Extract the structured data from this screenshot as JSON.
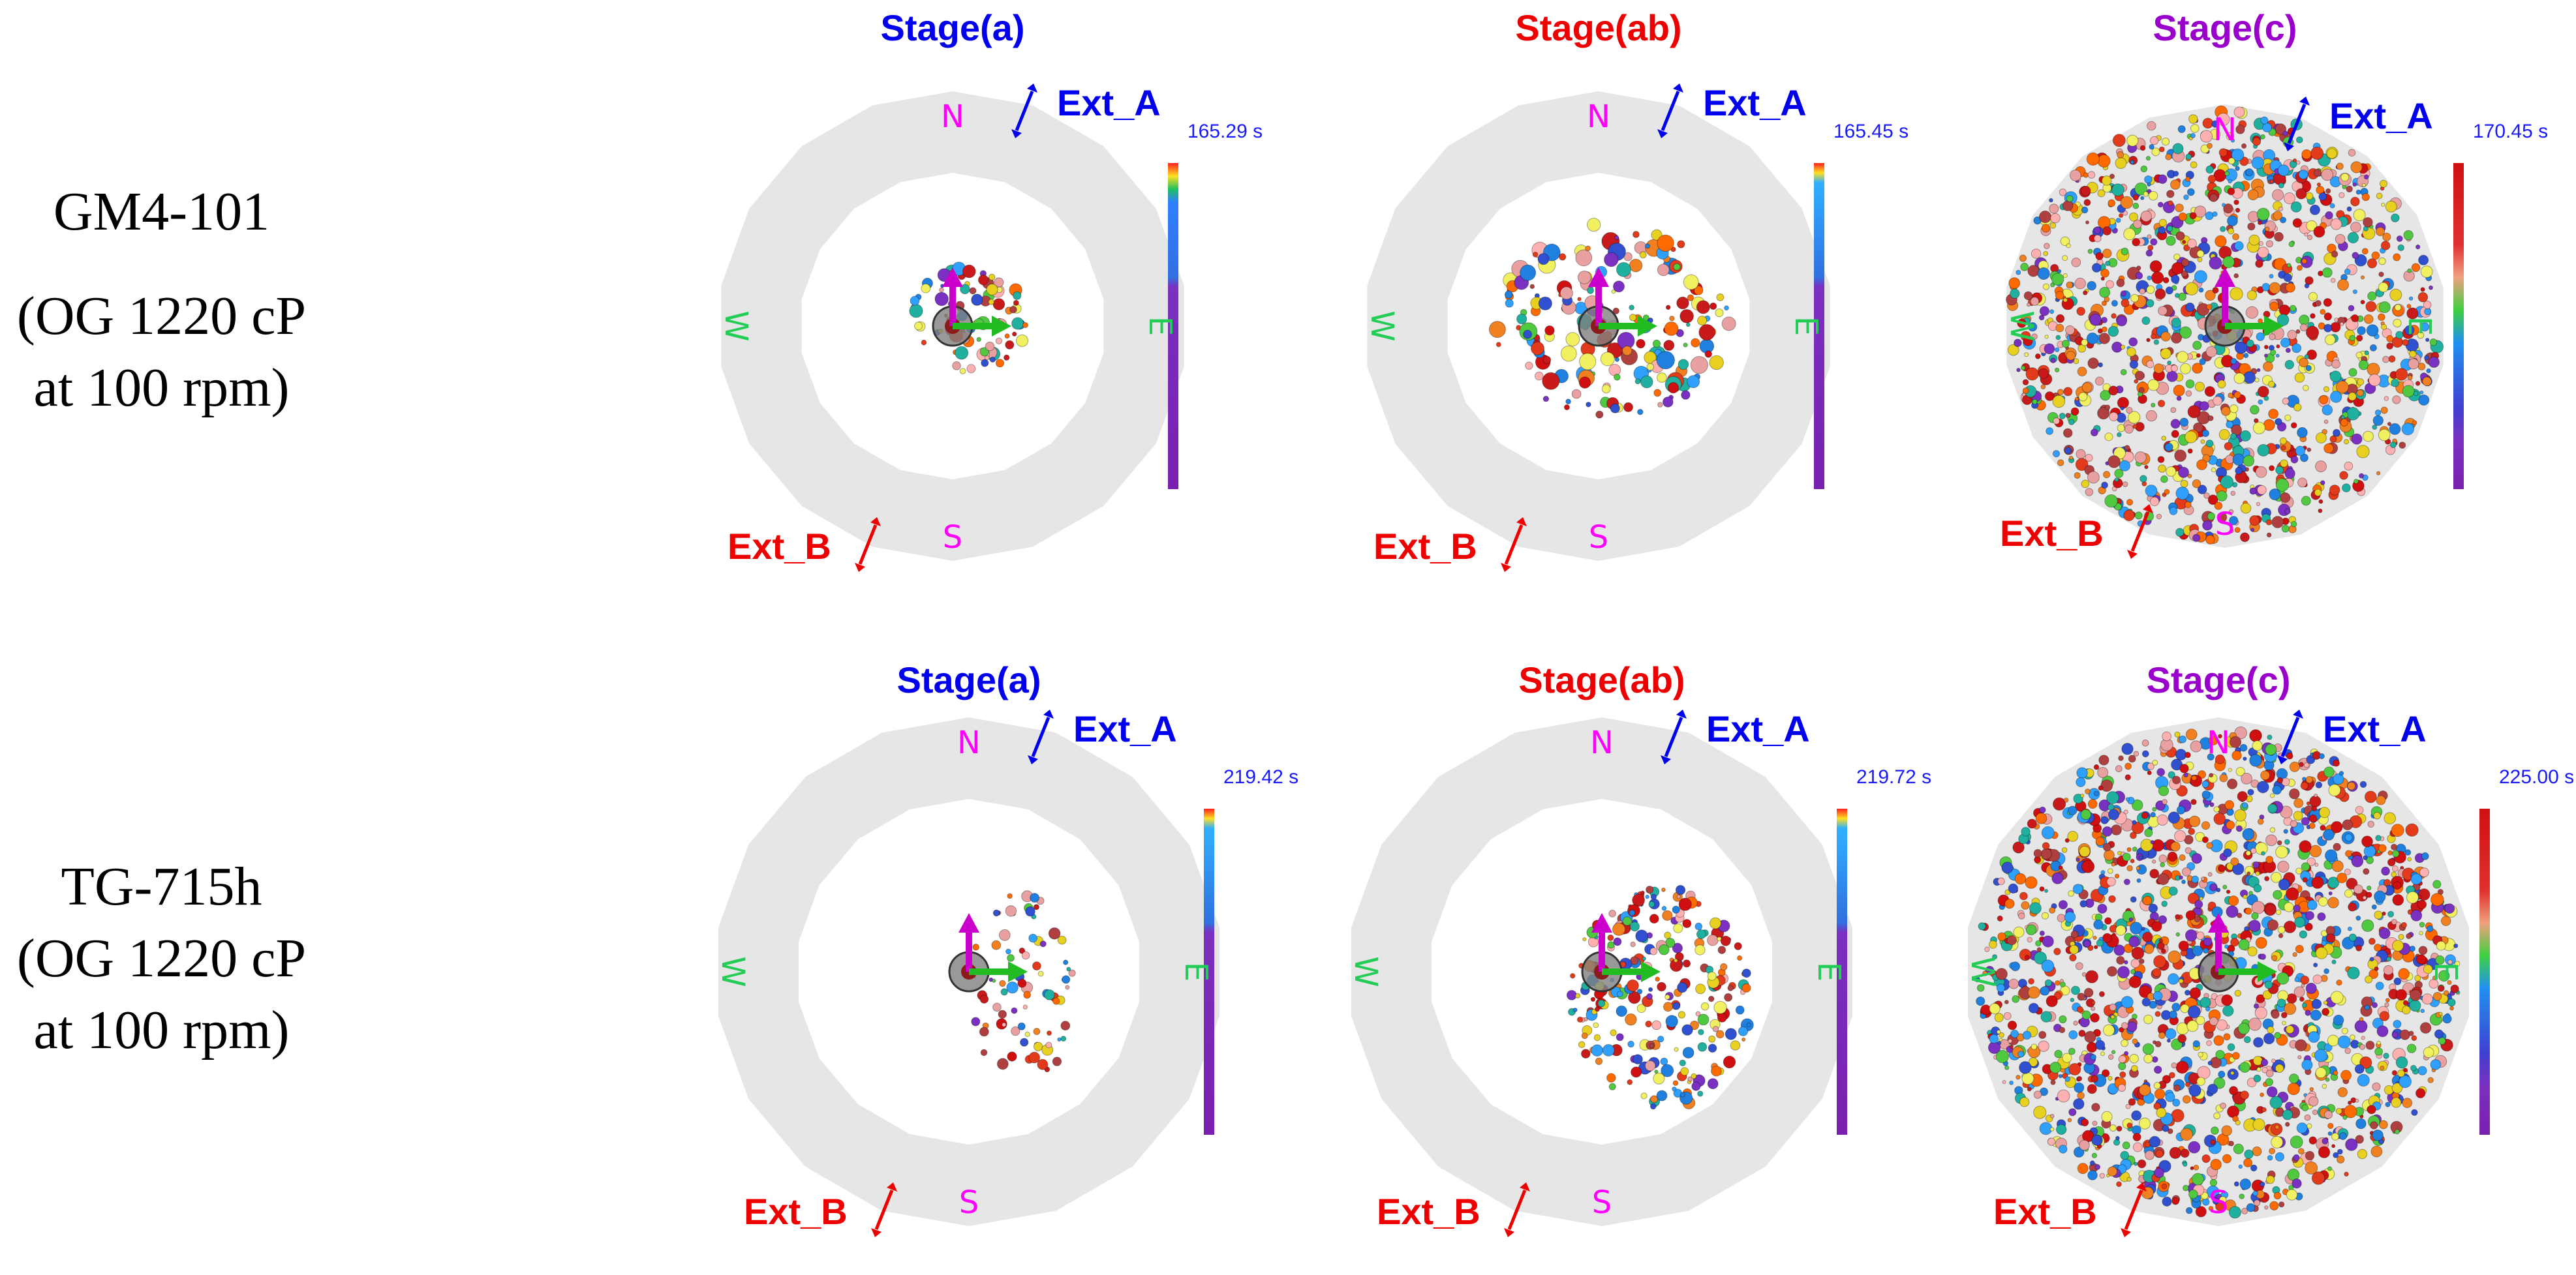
{
  "colors": {
    "stage_a": "#0000ee",
    "stage_ab": "#ee0000",
    "stage_c": "#9900cc",
    "ext_a": "#0000ee",
    "ext_b": "#ee0000",
    "north_south": "#ff00ff",
    "east_west": "#22cc55",
    "ring": "#e6e6e6",
    "time": "#1a1aff"
  },
  "rows": [
    {
      "label_lines": [
        "GM4-101",
        "(OG 1220 cP",
        "at 100 rpm)"
      ],
      "panels": [
        {
          "stage": "Stage(a)",
          "time": "165.29  s",
          "ext_a": "Ext_A",
          "ext_b": "Ext_B",
          "compass": {
            "n": "N",
            "s": "S",
            "e": "E",
            "w": "W"
          }
        },
        {
          "stage": "Stage(ab)",
          "time": "165.45  s",
          "ext_a": "Ext_A",
          "ext_b": "Ext_B",
          "compass": {
            "n": "N",
            "s": "S",
            "e": "E",
            "w": "W"
          }
        },
        {
          "stage": "Stage(c)",
          "time": "170.45  s",
          "ext_a": "Ext_A",
          "ext_b": "Ext_B",
          "compass": {
            "n": "N",
            "s": "S",
            "e": "E",
            "w": "W"
          }
        }
      ]
    },
    {
      "label_lines": [
        "TG-715h",
        "(OG 1220 cP",
        "at 100 rpm)"
      ],
      "panels": [
        {
          "stage": "Stage(a)",
          "time": "219.42  s",
          "ext_a": "Ext_A",
          "ext_b": "Ext_B",
          "compass": {
            "n": "N",
            "s": "S",
            "e": "E",
            "w": "W"
          }
        },
        {
          "stage": "Stage(ab)",
          "time": "219.72  s",
          "ext_a": "Ext_A",
          "ext_b": "Ext_B",
          "compass": {
            "n": "N",
            "s": "S",
            "e": "E",
            "w": "W"
          }
        },
        {
          "stage": "Stage(c)",
          "time": "225.00  s",
          "ext_a": "Ext_A",
          "ext_b": "Ext_B",
          "compass": {
            "n": "N",
            "s": "S",
            "e": "E",
            "w": "W"
          }
        }
      ]
    }
  ]
}
